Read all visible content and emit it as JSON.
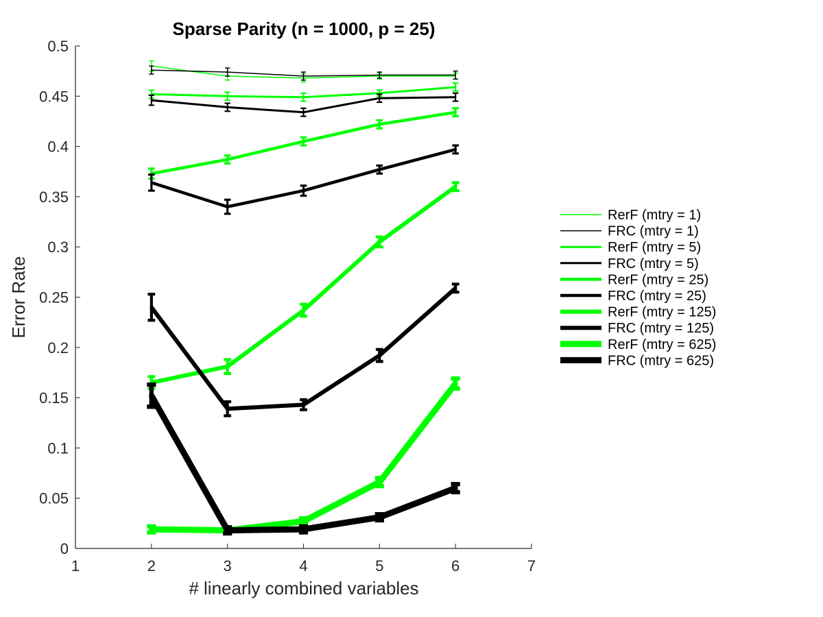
{
  "chart_data": {
    "type": "line",
    "title": "Sparse Parity (n = 1000, p = 25)",
    "xlabel": "# linearly combined variables",
    "ylabel": "Error Rate",
    "xlim": [
      1,
      7
    ],
    "ylim": [
      0,
      0.5
    ],
    "xticks": [
      "1",
      "2",
      "3",
      "4",
      "5",
      "6",
      "7"
    ],
    "yticks": [
      "0",
      "0.05",
      "0.1",
      "0.15",
      "0.2",
      "0.25",
      "0.3",
      "0.35",
      "0.4",
      "0.45",
      "0.5"
    ],
    "grid": false,
    "legend_position": "right",
    "x": [
      2,
      3,
      4,
      5,
      6
    ],
    "series": [
      {
        "name": "RerF (mtry = 1)",
        "color": "#00ff00",
        "values": [
          0.48,
          0.47,
          0.468,
          0.47,
          0.47
        ],
        "errors": [
          0.005,
          0.004,
          0.004,
          0.003,
          0.003
        ]
      },
      {
        "name": "FRC (mtry = 1)",
        "color": "#000000",
        "values": [
          0.476,
          0.474,
          0.47,
          0.471,
          0.471
        ],
        "errors": [
          0.004,
          0.004,
          0.004,
          0.003,
          0.004
        ]
      },
      {
        "name": "RerF (mtry = 5)",
        "color": "#00ff00",
        "values": [
          0.452,
          0.45,
          0.449,
          0.453,
          0.459
        ],
        "errors": [
          0.004,
          0.004,
          0.004,
          0.003,
          0.004
        ]
      },
      {
        "name": "FRC (mtry = 5)",
        "color": "#000000",
        "values": [
          0.446,
          0.439,
          0.434,
          0.448,
          0.449
        ],
        "errors": [
          0.005,
          0.004,
          0.004,
          0.004,
          0.004
        ]
      },
      {
        "name": "RerF (mtry = 25)",
        "color": "#00ff00",
        "values": [
          0.373,
          0.387,
          0.405,
          0.422,
          0.434
        ],
        "errors": [
          0.005,
          0.004,
          0.004,
          0.004,
          0.004
        ]
      },
      {
        "name": "FRC (mtry = 25)",
        "color": "#000000",
        "values": [
          0.364,
          0.34,
          0.356,
          0.377,
          0.397
        ],
        "errors": [
          0.008,
          0.007,
          0.005,
          0.004,
          0.004
        ]
      },
      {
        "name": "RerF (mtry = 125)",
        "color": "#00ff00",
        "values": [
          0.165,
          0.181,
          0.237,
          0.305,
          0.36
        ],
        "errors": [
          0.006,
          0.007,
          0.006,
          0.005,
          0.004
        ]
      },
      {
        "name": "FRC (mtry = 125)",
        "color": "#000000",
        "values": [
          0.24,
          0.139,
          0.143,
          0.192,
          0.259
        ],
        "errors": [
          0.013,
          0.007,
          0.005,
          0.006,
          0.004
        ]
      },
      {
        "name": "RerF (mtry = 625)",
        "color": "#00ff00",
        "values": [
          0.019,
          0.018,
          0.027,
          0.066,
          0.164
        ],
        "errors": [
          0.003,
          0.002,
          0.003,
          0.004,
          0.005
        ]
      },
      {
        "name": "FRC (mtry = 625)",
        "color": "#000000",
        "values": [
          0.152,
          0.018,
          0.019,
          0.031,
          0.06
        ],
        "errors": [
          0.011,
          0.003,
          0.003,
          0.003,
          0.004
        ]
      }
    ]
  }
}
